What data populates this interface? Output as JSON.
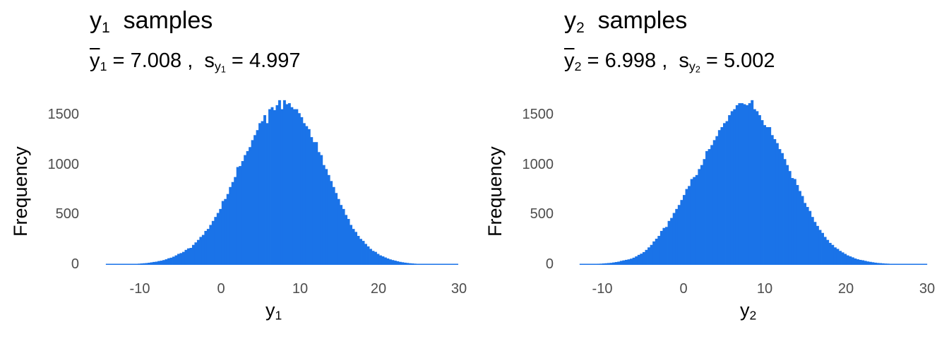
{
  "colors": {
    "bar": "#1A73E8",
    "tick_text": "#4d4d4d",
    "text": "#000000"
  },
  "panels": [
    {
      "title": {
        "var": "y",
        "sub": "1",
        "rest": "samples"
      },
      "subtitle": {
        "mean_var": "y",
        "mean_sub": "1",
        "mean_value": "7.008",
        "sep": ",",
        "sd_var": "s",
        "sd_sub_var": "y",
        "sd_sub_sub": "1",
        "sd_value": "4.997"
      },
      "ylabel": "Frequency",
      "xlabel": {
        "var": "y",
        "sub": "1"
      },
      "yticks": [
        "0",
        "500",
        "1000",
        "1500"
      ],
      "xticks": [
        "-10",
        "0",
        "10",
        "20",
        "30"
      ]
    },
    {
      "title": {
        "var": "y",
        "sub": "2",
        "rest": "samples"
      },
      "subtitle": {
        "mean_var": "y",
        "mean_sub": "2",
        "mean_value": "6.998",
        "sep": ",",
        "sd_var": "s",
        "sd_sub_var": "y",
        "sd_sub_sub": "2",
        "sd_value": "5.002"
      },
      "ylabel": "Frequency",
      "xlabel": {
        "var": "y",
        "sub": "2"
      },
      "yticks": [
        "0",
        "500",
        "1000",
        "1500"
      ],
      "xticks": [
        "-10",
        "0",
        "10",
        "20",
        "30"
      ]
    }
  ],
  "chart_data": [
    {
      "type": "bar",
      "title": "y1 samples",
      "subtitle": "ȳ1 = 7.008 , s_y1 = 4.997",
      "xlabel": "y1",
      "ylabel": "Frequency",
      "xlim": [
        -14.5,
        28.5
      ],
      "ylim": [
        0,
        1650
      ],
      "xticks": [
        -10,
        0,
        10,
        20,
        30
      ],
      "yticks": [
        0,
        500,
        1000,
        1500
      ],
      "grid": false,
      "bin_start": -14.5,
      "bin_width": 0.31,
      "mean": 7.008,
      "sd": 4.997,
      "counts": [
        2,
        2,
        3,
        3,
        3,
        4,
        4,
        5,
        6,
        7,
        8,
        9,
        10,
        12,
        14,
        16,
        18,
        21,
        25,
        29,
        32,
        38,
        42,
        48,
        56,
        66,
        72,
        82,
        95,
        110,
        118,
        130,
        150,
        165,
        170,
        200,
        225,
        250,
        280,
        300,
        340,
        360,
        400,
        440,
        480,
        520,
        560,
        640,
        660,
        710,
        780,
        830,
        880,
        980,
        990,
        1040,
        1100,
        1140,
        1180,
        1250,
        1300,
        1350,
        1420,
        1440,
        1500,
        1420,
        1560,
        1580,
        1550,
        1600,
        1650,
        1560,
        1650,
        1610,
        1620,
        1580,
        1560,
        1560,
        1520,
        1480,
        1420,
        1390,
        1360,
        1280,
        1230,
        1230,
        1130,
        1100,
        1000,
        960,
        900,
        840,
        780,
        720,
        660,
        600,
        560,
        500,
        460,
        400,
        360,
        330,
        290,
        260,
        240,
        210,
        185,
        160,
        140,
        130,
        110,
        95,
        85,
        74,
        64,
        55,
        48,
        42,
        36,
        30,
        26,
        22,
        19,
        16,
        14,
        12,
        10,
        9,
        8,
        7,
        6,
        5,
        5,
        4,
        4,
        3,
        3,
        3,
        2,
        2,
        2,
        2,
        2
      ]
    },
    {
      "type": "bar",
      "title": "y2 samples",
      "subtitle": "ȳ2 = 6.998 , s_y2 = 5.002",
      "xlabel": "y2",
      "ylabel": "Frequency",
      "xlim": [
        -12.8,
        29.3
      ],
      "ylim": [
        0,
        1650
      ],
      "xticks": [
        -10,
        0,
        10,
        20,
        30
      ],
      "yticks": [
        0,
        500,
        1000,
        1500
      ],
      "grid": false,
      "bin_start": -12.8,
      "bin_width": 0.31,
      "mean": 6.998,
      "sd": 5.002,
      "counts": [
        5,
        5,
        6,
        7,
        8,
        9,
        10,
        11,
        12,
        14,
        16,
        18,
        20,
        24,
        28,
        32,
        40,
        45,
        50,
        55,
        62,
        72,
        85,
        100,
        112,
        128,
        150,
        175,
        200,
        235,
        262,
        290,
        340,
        370,
        380,
        440,
        470,
        520,
        560,
        600,
        650,
        700,
        760,
        790,
        860,
        880,
        900,
        960,
        1000,
        1060,
        1140,
        1160,
        1200,
        1250,
        1290,
        1350,
        1380,
        1420,
        1440,
        1500,
        1540,
        1560,
        1600,
        1620,
        1620,
        1610,
        1600,
        1620,
        1650,
        1560,
        1540,
        1500,
        1450,
        1400,
        1380,
        1380,
        1300,
        1260,
        1220,
        1160,
        1120,
        1060,
        1000,
        940,
        870,
        860,
        800,
        740,
        690,
        620,
        580,
        540,
        480,
        430,
        390,
        350,
        320,
        280,
        250,
        220,
        200,
        175,
        160,
        140,
        125,
        110,
        95,
        85,
        75,
        64,
        56,
        50,
        46,
        40,
        34,
        30,
        26,
        22,
        19,
        17,
        15,
        13,
        12,
        10,
        9,
        8,
        7,
        6,
        6,
        5,
        5,
        4,
        4,
        3,
        3,
        3,
        3,
        2
      ]
    }
  ]
}
